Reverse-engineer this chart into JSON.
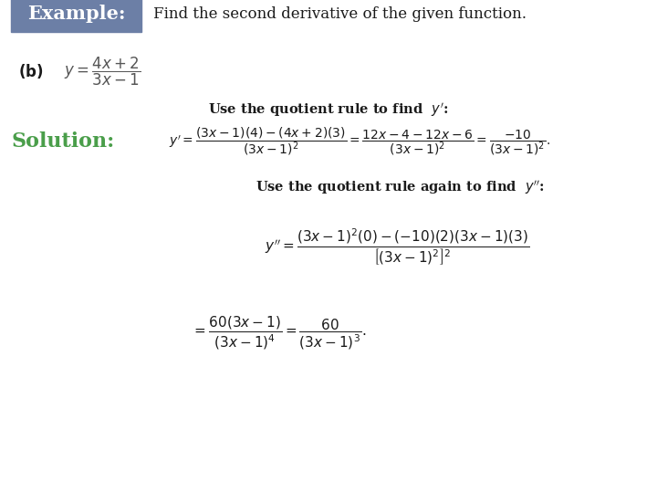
{
  "background_color": "#ffffff",
  "example_box_color": "#6c7fa6",
  "example_text": "Example:",
  "example_text_color": "#ffffff",
  "header_text": "Find the second derivative of the given function.",
  "part_b": "(b)",
  "solution_label": "Solution:",
  "solution_color": "#4a9e4a",
  "fig_width": 7.2,
  "fig_height": 5.4,
  "dpi": 100
}
